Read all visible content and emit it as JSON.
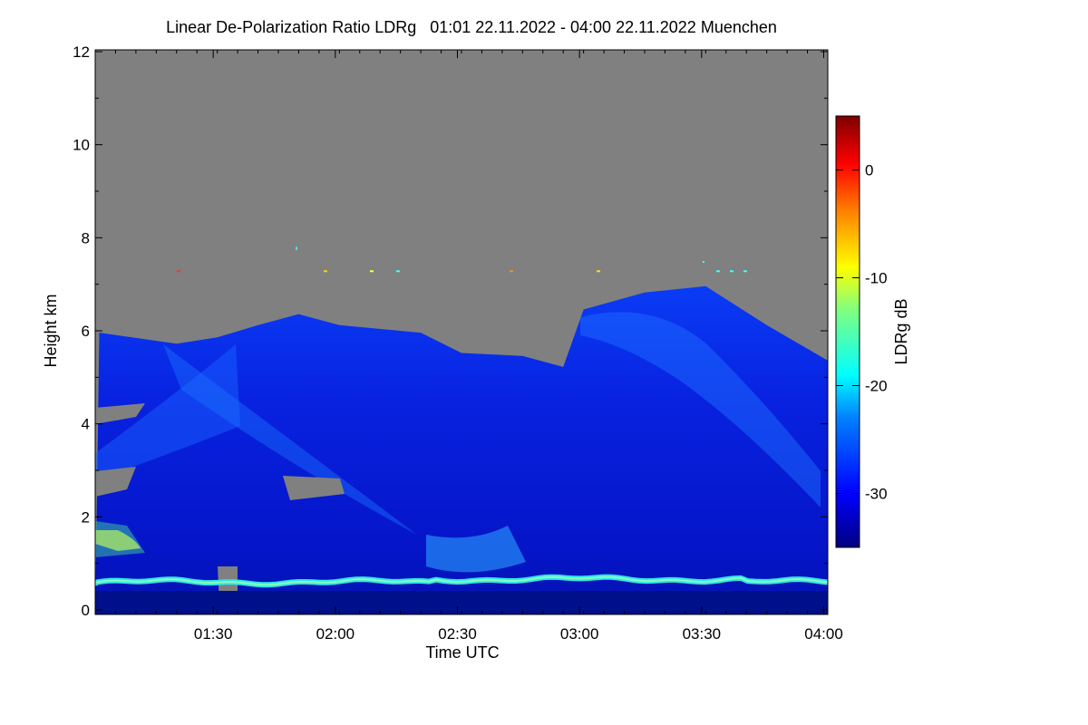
{
  "chart_data": {
    "type": "heatmap",
    "title": "Linear De-Polarization Ratio LDRg   01:01 22.11.2022 - 04:00 22.11.2022 Muenchen",
    "xlabel": "Time UTC",
    "ylabel": "Height km",
    "x_range": [
      "01:01",
      "04:00"
    ],
    "x_ticks": [
      "01:30",
      "02:00",
      "02:30",
      "03:00",
      "03:30",
      "04:00"
    ],
    "x_tick_minutes": [
      89,
      119,
      149,
      179,
      209,
      239
    ],
    "x_start_minute": 60,
    "x_end_minute": 240,
    "ylim": [
      0,
      12
    ],
    "y_ticks": [
      0,
      2,
      4,
      6,
      8,
      10,
      12
    ],
    "colorbar": {
      "label": "LDRg dB",
      "range": [
        -35,
        5
      ],
      "ticks": [
        0,
        -10,
        -20,
        -30
      ],
      "colors": [
        "#00007f",
        "#0000ff",
        "#0080ff",
        "#00ffff",
        "#80ff80",
        "#ffff00",
        "#ff8000",
        "#ff0000",
        "#7f0000"
      ]
    },
    "no_data_color": "#808080",
    "cloud_top_profile": [
      {
        "t": "01:01",
        "km": 5.9
      },
      {
        "t": "01:20",
        "km": 5.8
      },
      {
        "t": "01:30",
        "km": 5.8
      },
      {
        "t": "01:40",
        "km": 6.2
      },
      {
        "t": "01:50",
        "km": 6.3
      },
      {
        "t": "02:00",
        "km": 6.2
      },
      {
        "t": "02:20",
        "km": 5.9
      },
      {
        "t": "02:30",
        "km": 5.6
      },
      {
        "t": "02:45",
        "km": 5.4
      },
      {
        "t": "02:55",
        "km": 5.3
      },
      {
        "t": "03:00",
        "km": 6.4
      },
      {
        "t": "03:15",
        "km": 6.9
      },
      {
        "t": "03:30",
        "km": 6.9
      },
      {
        "t": "03:45",
        "km": 6.2
      },
      {
        "t": "04:00",
        "km": 5.3
      }
    ],
    "boundary_layer": {
      "height_km": 0.6,
      "ldr_db": -20
    },
    "background_ldr_db": -30
  }
}
